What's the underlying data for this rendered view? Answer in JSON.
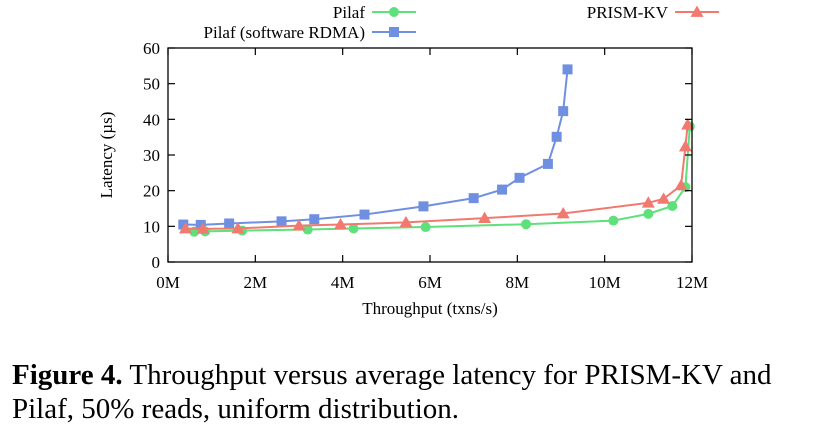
{
  "chart_data": {
    "type": "line",
    "xlabel": "Throughput (txns/s)",
    "ylabel": "Latency (µs)",
    "xlim": [
      0,
      12
    ],
    "ylim": [
      0,
      60
    ],
    "x_ticks": [
      "0M",
      "2M",
      "4M",
      "6M",
      "8M",
      "10M",
      "12M"
    ],
    "y_ticks": [
      "0",
      "10",
      "20",
      "30",
      "40",
      "50",
      "60"
    ],
    "grid": false,
    "legend_position": "top",
    "series": [
      {
        "name": "Pilaf",
        "color": "#5ee07a",
        "marker": "circle",
        "points": [
          [
            0.6,
            8.5
          ],
          [
            0.85,
            8.6
          ],
          [
            1.7,
            8.8
          ],
          [
            3.2,
            9.1
          ],
          [
            4.25,
            9.4
          ],
          [
            5.9,
            9.8
          ],
          [
            8.2,
            10.6
          ],
          [
            10.2,
            11.6
          ],
          [
            11.0,
            13.5
          ],
          [
            11.55,
            15.7
          ],
          [
            11.85,
            21.0
          ],
          [
            11.95,
            38.0
          ]
        ]
      },
      {
        "name": "Pilaf (software RDMA)",
        "color": "#6f8fe0",
        "marker": "square",
        "points": [
          [
            0.35,
            10.5
          ],
          [
            0.75,
            10.4
          ],
          [
            1.4,
            10.8
          ],
          [
            2.6,
            11.4
          ],
          [
            3.35,
            12.0
          ],
          [
            4.5,
            13.3
          ],
          [
            5.85,
            15.6
          ],
          [
            7.0,
            17.9
          ],
          [
            7.65,
            20.3
          ],
          [
            8.05,
            23.6
          ],
          [
            8.7,
            27.5
          ],
          [
            8.9,
            35.1
          ],
          [
            9.05,
            42.3
          ],
          [
            9.15,
            54.0
          ]
        ]
      },
      {
        "name": "PRISM-KV",
        "color": "#f07a70",
        "marker": "triangle",
        "points": [
          [
            0.4,
            9.4
          ],
          [
            0.8,
            9.3
          ],
          [
            1.6,
            9.4
          ],
          [
            3.0,
            10.2
          ],
          [
            3.95,
            10.5
          ],
          [
            5.45,
            11.1
          ],
          [
            7.25,
            12.3
          ],
          [
            9.05,
            13.6
          ],
          [
            11.0,
            16.6
          ],
          [
            11.35,
            17.7
          ],
          [
            11.75,
            21.5
          ],
          [
            11.85,
            32.4
          ],
          [
            11.9,
            38.5
          ]
        ]
      }
    ]
  },
  "caption": {
    "label": "Figure 4.",
    "text": " Throughput versus average latency for PRISM-KV and Pilaf, 50% reads, uniform distribution."
  }
}
